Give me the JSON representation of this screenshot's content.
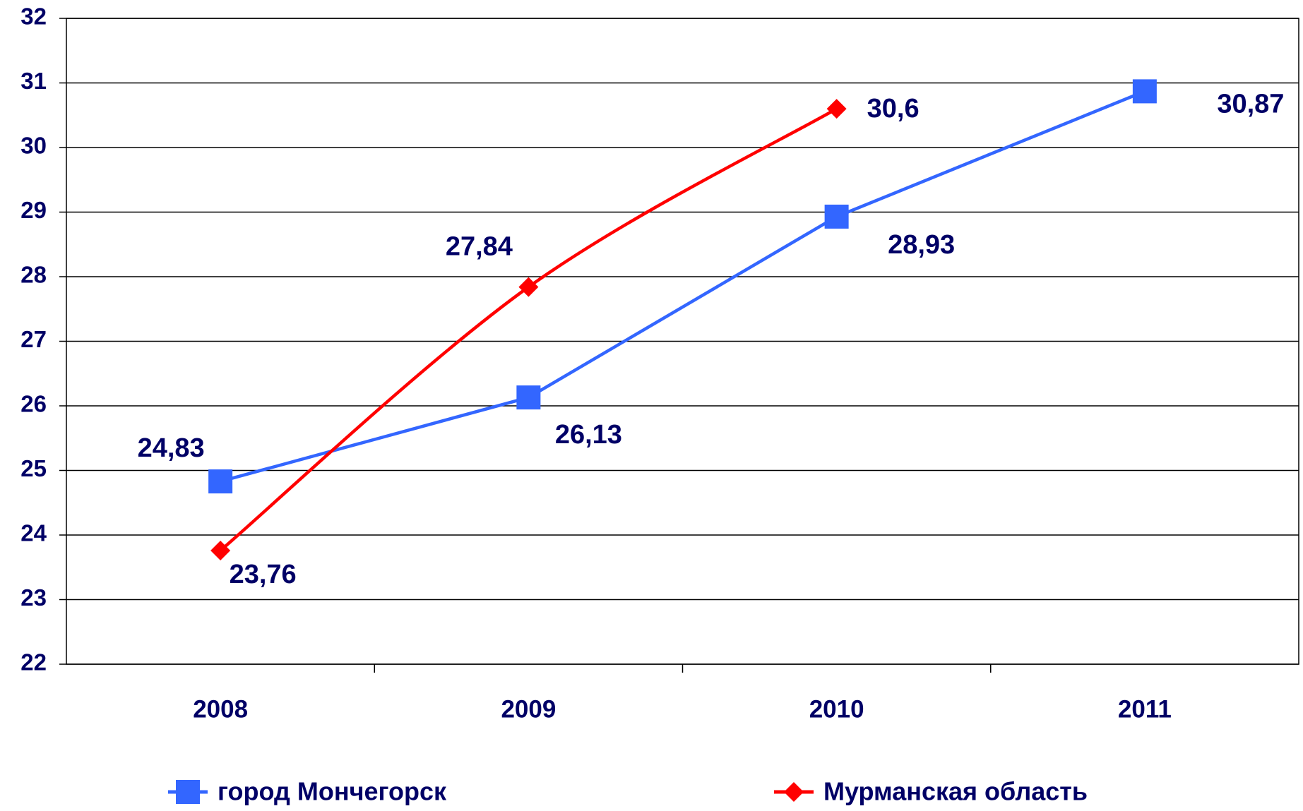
{
  "chart_data": {
    "type": "line",
    "categories": [
      "2008",
      "2009",
      "2010",
      "2011"
    ],
    "series": [
      {
        "name": "город Мончегорск",
        "color": "#3366ff",
        "marker": "square",
        "smooth": false,
        "values": [
          24.83,
          26.13,
          28.93,
          30.87
        ],
        "value_labels": [
          "24,83",
          "26,13",
          "28,93",
          "30,87"
        ]
      },
      {
        "name": "Мурманская область",
        "color": "#ff0000",
        "marker": "diamond",
        "smooth": true,
        "values": [
          23.76,
          27.84,
          30.6,
          null
        ],
        "value_labels": [
          "23,76",
          "27,84",
          "30,6",
          null
        ]
      }
    ],
    "ylim": [
      22,
      32
    ],
    "yticks": [
      22,
      23,
      24,
      25,
      26,
      27,
      28,
      29,
      30,
      31,
      32
    ],
    "grid": true,
    "legend": "bottom"
  }
}
